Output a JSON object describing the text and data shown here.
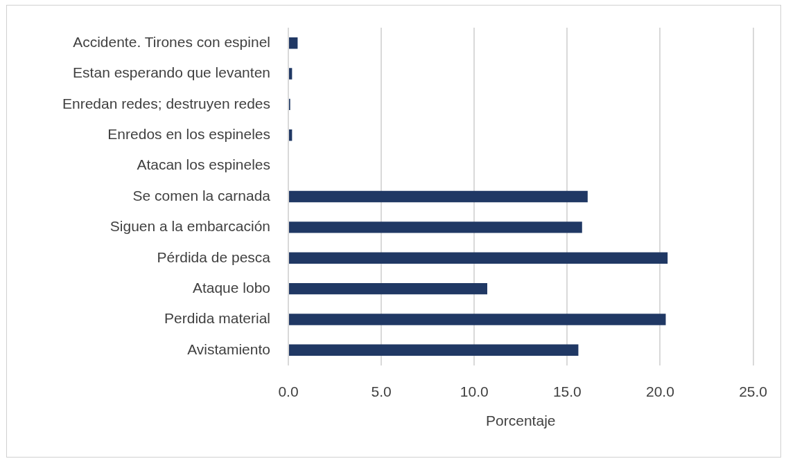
{
  "chart_data": {
    "type": "bar",
    "orientation": "horizontal",
    "categories": [
      "Accidente. Tirones con espinel",
      "Estan esperando que levanten",
      "Enredan redes; destruyen redes",
      "Enredos en los espineles",
      "Atacan los espineles",
      "Se comen la carnada",
      "Siguen a la embarcación",
      "Pérdida de pesca",
      "Ataque lobo",
      "Perdida material",
      "Avistamiento"
    ],
    "values": [
      0.5,
      0.2,
      0.1,
      0.2,
      0,
      16.1,
      15.8,
      20.4,
      10.7,
      20.3,
      15.6
    ],
    "color": "#203864",
    "xlabel": "Porcentaje",
    "xlim": [
      0,
      25
    ],
    "xticks": [
      {
        "value": 0,
        "label": "0.0"
      },
      {
        "value": 5,
        "label": "5.0"
      },
      {
        "value": 10,
        "label": "10.0"
      },
      {
        "value": 15,
        "label": "15.0"
      },
      {
        "value": 20,
        "label": "20.0"
      },
      {
        "value": 25,
        "label": "25.0"
      }
    ],
    "grid": "x",
    "legend": false
  }
}
